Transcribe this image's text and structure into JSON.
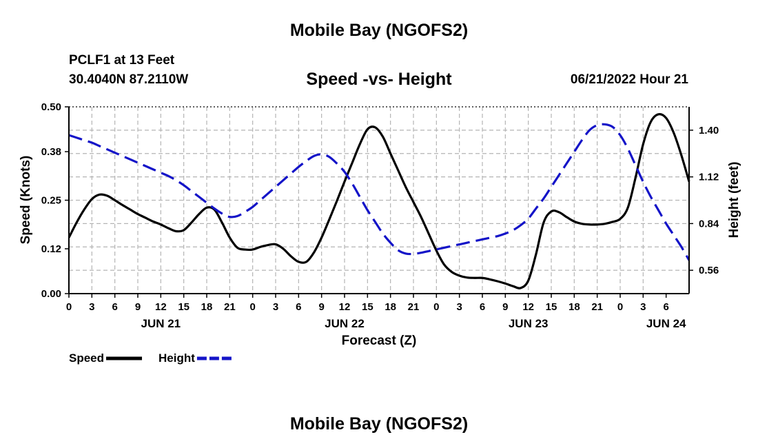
{
  "title": "Mobile Bay (NGOFS2)",
  "footer_title": "Mobile Bay (NGOFS2)",
  "station": "PCLF1 at 13 Feet",
  "coordinates": "30.4040N  87.2110W",
  "timestamp": "06/21/2022 Hour 21",
  "chart_data": {
    "type": "line",
    "title": "Speed -vs- Height",
    "xlabel": "Forecast (Z)",
    "ylabel_left": "Speed (Knots)",
    "ylabel_right": "Height (feet)",
    "x_range_hours": [
      0,
      81
    ],
    "x_tick_labels": [
      "0",
      "3",
      "6",
      "9",
      "12",
      "15",
      "18",
      "21",
      "0",
      "3",
      "6",
      "9",
      "12",
      "15",
      "18",
      "21",
      "0",
      "3",
      "6",
      "9",
      "12",
      "15",
      "18",
      "21",
      "0",
      "3",
      "6"
    ],
    "day_labels": [
      {
        "label": "JUN 21",
        "hour": 12
      },
      {
        "label": "JUN 22",
        "hour": 36
      },
      {
        "label": "JUN 23",
        "hour": 60
      },
      {
        "label": "JUN 24",
        "hour": 78
      }
    ],
    "y_left": {
      "range": [
        0,
        0.5
      ],
      "ticks": [
        "0.00",
        "0.12",
        "0.25",
        "0.38",
        "0.50"
      ]
    },
    "y_right": {
      "range": [
        0.42,
        1.54
      ],
      "ticks": [
        "0.56",
        "0.84",
        "1.12",
        "1.40"
      ]
    },
    "grid": true,
    "legend": [
      {
        "label": "Speed",
        "color": "#000000",
        "style": "solid"
      },
      {
        "label": "Height",
        "color": "#1414c8",
        "style": "dashed"
      }
    ],
    "series": [
      {
        "name": "Speed",
        "axis": "left",
        "color": "#000000",
        "style": "solid",
        "x": [
          0,
          1,
          2,
          3,
          4,
          5,
          6,
          7,
          8,
          9,
          10,
          11,
          12,
          13,
          14,
          15,
          16,
          17,
          18,
          19,
          20,
          21,
          22,
          23,
          24,
          25,
          26,
          27,
          28,
          29,
          30,
          31,
          32,
          33,
          34,
          35,
          36,
          37,
          38,
          39,
          40,
          41,
          42,
          43,
          44,
          45,
          46,
          47,
          48,
          49,
          50,
          51,
          52,
          53,
          54,
          55,
          56,
          57,
          58,
          59,
          60,
          61,
          62,
          63,
          64,
          65,
          66,
          67,
          68,
          69,
          70,
          71,
          72,
          73,
          74,
          75,
          76,
          77,
          78,
          79,
          80,
          81
        ],
        "values": [
          0.15,
          0.19,
          0.225,
          0.253,
          0.265,
          0.262,
          0.25,
          0.237,
          0.225,
          0.213,
          0.203,
          0.193,
          0.185,
          0.175,
          0.167,
          0.17,
          0.19,
          0.213,
          0.23,
          0.225,
          0.19,
          0.15,
          0.123,
          0.118,
          0.118,
          0.125,
          0.13,
          0.132,
          0.12,
          0.1,
          0.085,
          0.085,
          0.11,
          0.15,
          0.198,
          0.248,
          0.3,
          0.35,
          0.4,
          0.44,
          0.445,
          0.42,
          0.375,
          0.33,
          0.285,
          0.245,
          0.205,
          0.16,
          0.115,
          0.078,
          0.058,
          0.048,
          0.043,
          0.042,
          0.042,
          0.038,
          0.033,
          0.027,
          0.02,
          0.015,
          0.035,
          0.105,
          0.19,
          0.22,
          0.218,
          0.205,
          0.193,
          0.187,
          0.185,
          0.185,
          0.187,
          0.192,
          0.2,
          0.23,
          0.31,
          0.4,
          0.46,
          0.48,
          0.47,
          0.43,
          0.37,
          0.3
        ]
      },
      {
        "name": "Height",
        "axis": "right",
        "color": "#1414c8",
        "style": "dashed",
        "x": [
          0,
          1,
          2,
          3,
          4,
          5,
          6,
          7,
          8,
          9,
          10,
          11,
          12,
          13,
          14,
          15,
          16,
          17,
          18,
          19,
          20,
          21,
          22,
          23,
          24,
          25,
          26,
          27,
          28,
          29,
          30,
          31,
          32,
          33,
          34,
          35,
          36,
          37,
          38,
          39,
          40,
          41,
          42,
          43,
          44,
          45,
          46,
          47,
          48,
          49,
          50,
          51,
          52,
          53,
          54,
          55,
          56,
          57,
          58,
          59,
          60,
          61,
          62,
          63,
          64,
          65,
          66,
          67,
          68,
          69,
          70,
          71,
          72,
          73,
          74,
          75,
          76,
          77,
          78,
          79,
          80,
          81
        ],
        "values": [
          1.37,
          1.355,
          1.34,
          1.325,
          1.305,
          1.285,
          1.265,
          1.245,
          1.225,
          1.205,
          1.185,
          1.165,
          1.145,
          1.125,
          1.1,
          1.07,
          1.035,
          1.0,
          0.965,
          0.93,
          0.9,
          0.88,
          0.885,
          0.91,
          0.94,
          0.98,
          1.02,
          1.06,
          1.1,
          1.14,
          1.18,
          1.215,
          1.245,
          1.255,
          1.24,
          1.2,
          1.15,
          1.08,
          1.0,
          0.92,
          0.85,
          0.78,
          0.725,
          0.68,
          0.66,
          0.658,
          0.665,
          0.675,
          0.685,
          0.695,
          0.705,
          0.715,
          0.725,
          0.735,
          0.745,
          0.755,
          0.765,
          0.78,
          0.8,
          0.83,
          0.87,
          0.93,
          0.99,
          1.06,
          1.13,
          1.2,
          1.27,
          1.34,
          1.4,
          1.43,
          1.435,
          1.42,
          1.37,
          1.29,
          1.19,
          1.09,
          1.0,
          0.92,
          0.84,
          0.77,
          0.7,
          0.62
        ]
      }
    ]
  }
}
